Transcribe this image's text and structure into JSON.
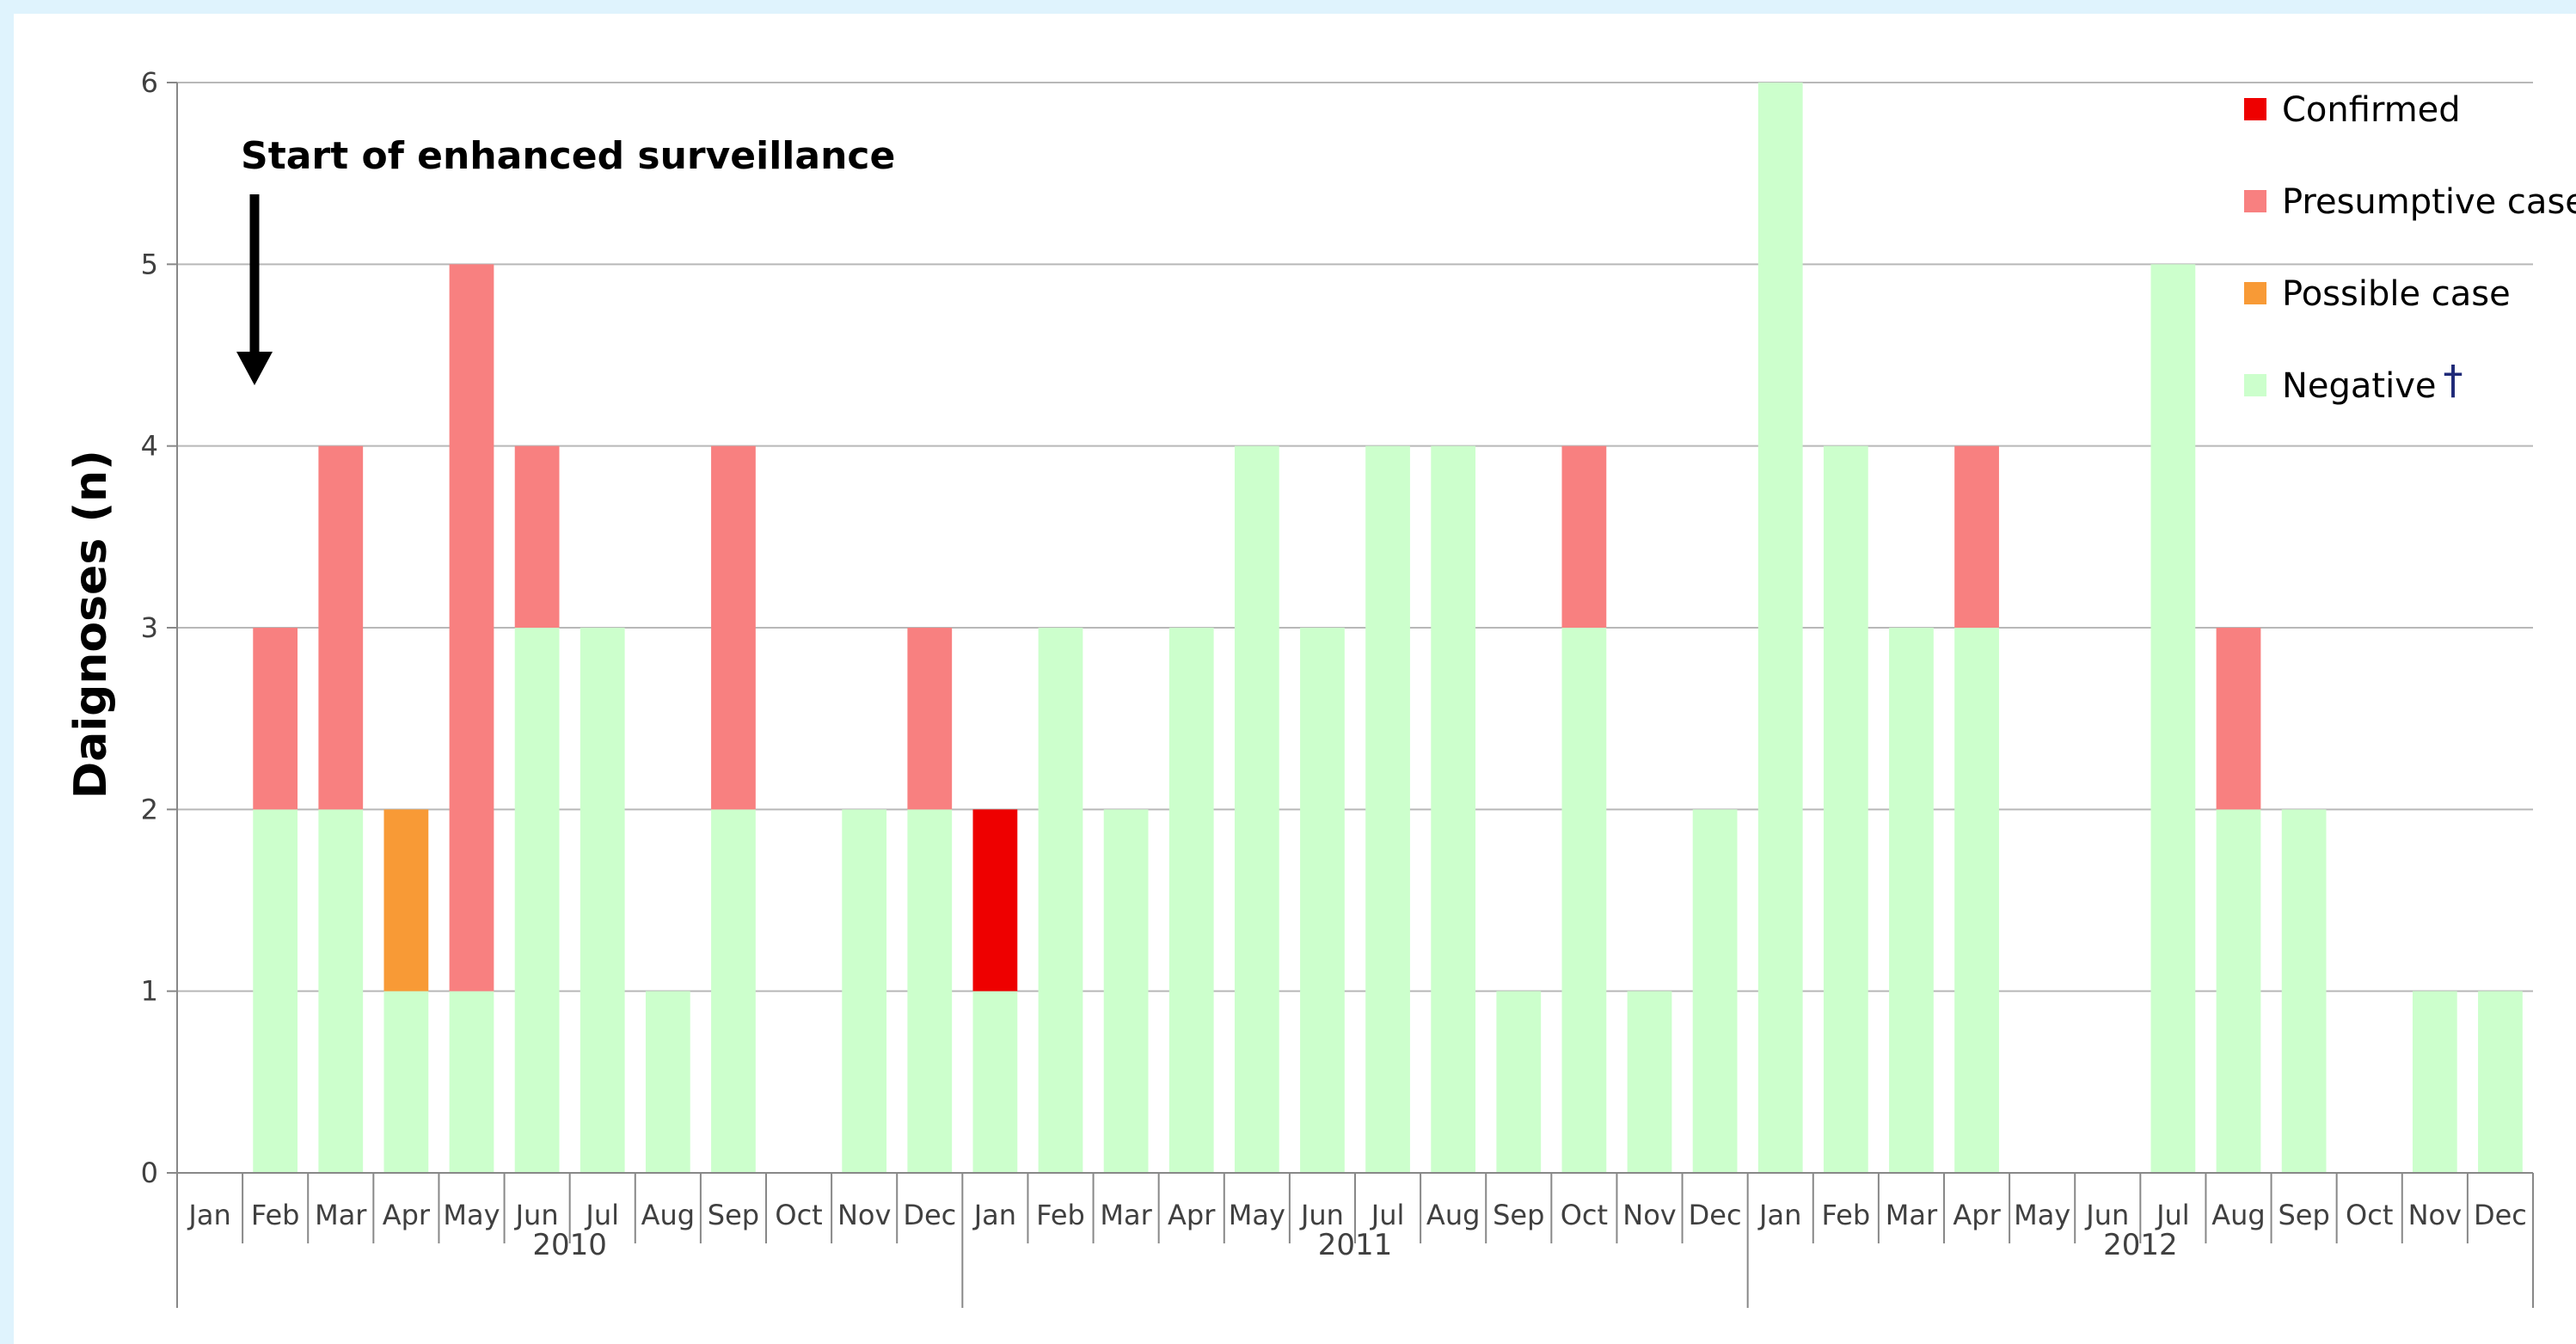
{
  "chart_data": {
    "type": "bar",
    "stacked": true,
    "ylabel": "Daignoses (n)",
    "ylim": [
      0,
      6
    ],
    "yticks": [
      0,
      1,
      2,
      3,
      4,
      5,
      6
    ],
    "grid": true,
    "legend_position": "top-right",
    "annotation": "Start of enhanced surveillance",
    "months": [
      "Jan",
      "Feb",
      "Mar",
      "Apr",
      "May",
      "Jun",
      "Jul",
      "Aug",
      "Sep",
      "Oct",
      "Nov",
      "Dec",
      "Jan",
      "Feb",
      "Mar",
      "Apr",
      "May",
      "Jun",
      "Jul",
      "Aug",
      "Sep",
      "Oct",
      "Nov",
      "Dec",
      "Jan",
      "Feb",
      "Mar",
      "Apr",
      "May",
      "Jun",
      "Jul",
      "Aug",
      "Sep",
      "Oct",
      "Nov",
      "Dec"
    ],
    "years": [
      "2010",
      "2011",
      "2012"
    ],
    "series": [
      {
        "name": "Confirmed",
        "color": "#ee0000",
        "values": [
          0,
          0,
          0,
          0,
          0,
          0,
          0,
          0,
          0,
          0,
          0,
          0,
          1,
          0,
          0,
          0,
          0,
          0,
          0,
          0,
          0,
          0,
          0,
          0,
          0,
          0,
          0,
          0,
          0,
          0,
          0,
          0,
          0,
          0,
          0,
          0
        ]
      },
      {
        "name": "Presumptive case",
        "color": "#f88080",
        "values": [
          0,
          1,
          2,
          0,
          4,
          1,
          0,
          0,
          2,
          0,
          0,
          1,
          0,
          0,
          0,
          0,
          0,
          0,
          0,
          0,
          0,
          1,
          0,
          0,
          0,
          0,
          0,
          1,
          0,
          0,
          0,
          1,
          0,
          0,
          0,
          0
        ]
      },
      {
        "name": "Possible case",
        "color": "#f89a36",
        "values": [
          0,
          0,
          0,
          1,
          0,
          0,
          0,
          0,
          0,
          0,
          0,
          0,
          0,
          0,
          0,
          0,
          0,
          0,
          0,
          0,
          0,
          0,
          0,
          0,
          0,
          0,
          0,
          0,
          0,
          0,
          0,
          0,
          0,
          0,
          0,
          0
        ]
      },
      {
        "name": "Negative",
        "color": "#ccffcc",
        "values": [
          0,
          2,
          2,
          1,
          1,
          3,
          3,
          1,
          2,
          0,
          2,
          2,
          1,
          3,
          2,
          3,
          4,
          3,
          4,
          4,
          1,
          3,
          1,
          2,
          6,
          4,
          3,
          3,
          0,
          0,
          5,
          2,
          2,
          0,
          1,
          1
        ]
      }
    ],
    "legend_order": [
      "Confirmed",
      "Presumptive case",
      "Possible case",
      "Negative"
    ],
    "stack_order": [
      "Negative",
      "Possible case",
      "Presumptive case",
      "Confirmed"
    ],
    "negative_footnote_mark": "†"
  }
}
